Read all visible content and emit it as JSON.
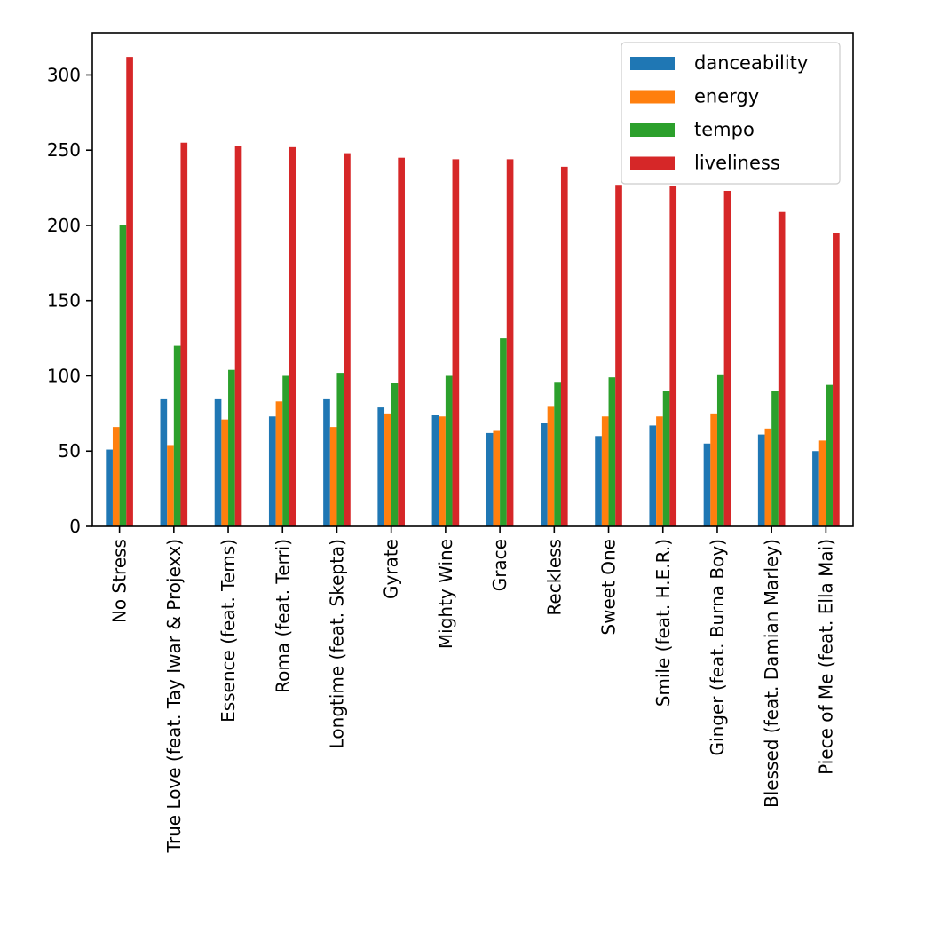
{
  "chart_data": {
    "type": "bar",
    "title": "",
    "xlabel": "",
    "ylabel": "",
    "ylim": [
      0,
      328
    ],
    "yticks": [
      0,
      50,
      100,
      150,
      200,
      250,
      300
    ],
    "grid": false,
    "legend_position": "top-right",
    "categories": [
      "No Stress",
      "True Love (feat. Tay Iwar & Projexx)",
      "Essence (feat. Tems)",
      "Roma (feat. Terri)",
      "Longtime (feat. Skepta)",
      "Gyrate",
      "Mighty Wine",
      "Grace",
      "Reckless",
      "Sweet One",
      "Smile (feat. H.E.R.)",
      "Ginger (feat. Burna Boy)",
      "Blessed (feat. Damian Marley)",
      "Piece of Me (feat. Ella Mai)"
    ],
    "series": [
      {
        "name": "danceability",
        "color": "#1f77b4",
        "values": [
          51,
          85,
          85,
          73,
          85,
          79,
          74,
          62,
          69,
          60,
          67,
          55,
          61,
          50
        ]
      },
      {
        "name": "energy",
        "color": "#ff7f0e",
        "values": [
          66,
          54,
          71,
          83,
          66,
          75,
          73,
          64,
          80,
          73,
          73,
          75,
          65,
          57
        ]
      },
      {
        "name": "tempo",
        "color": "#2ca02c",
        "values": [
          200,
          120,
          104,
          100,
          102,
          95,
          100,
          125,
          96,
          99,
          90,
          101,
          90,
          94
        ]
      },
      {
        "name": "liveliness",
        "color": "#d62728",
        "values": [
          312,
          255,
          253,
          252,
          248,
          245,
          244,
          244,
          239,
          227,
          226,
          223,
          209,
          195
        ]
      }
    ]
  }
}
